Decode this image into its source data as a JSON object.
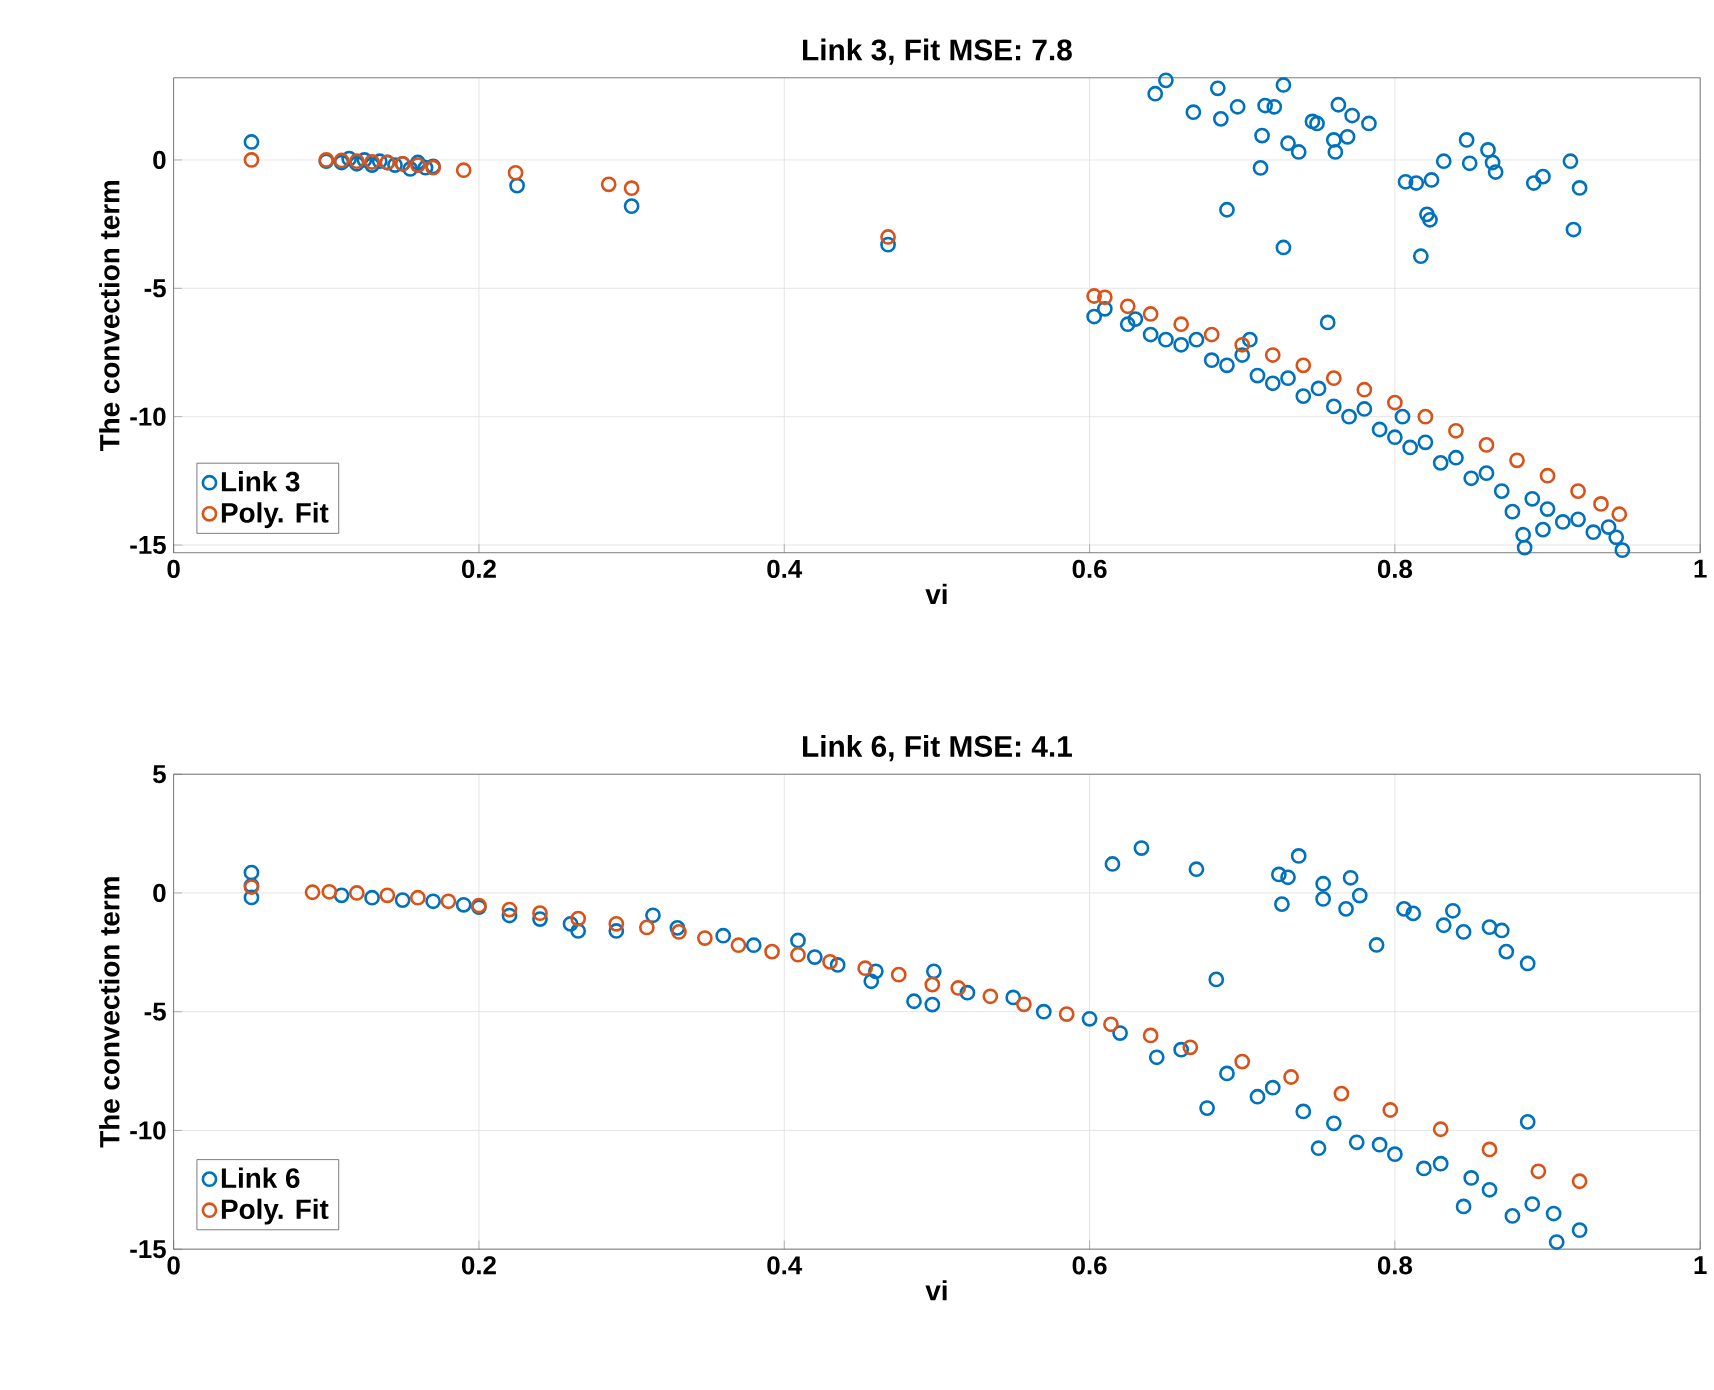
{
  "chart_data": [
    {
      "type": "scatter",
      "title": "Link 3, Fit MSE: 7.8",
      "xlabel": "vi",
      "ylabel": "The convection term",
      "xlim": [
        0,
        1
      ],
      "ylim": [
        -15.3,
        3.2
      ],
      "xticks": [
        0,
        0.2,
        0.4,
        0.6,
        0.8,
        1
      ],
      "yticks": [
        -15,
        -10,
        -5,
        0
      ],
      "grid": true,
      "legend": "bottom left",
      "marker": "circle",
      "series": [
        {
          "name": "Link 3",
          "color": "#0072bd",
          "x": [
            0.051,
            0.1,
            0.11,
            0.115,
            0.12,
            0.125,
            0.13,
            0.135,
            0.14,
            0.145,
            0.15,
            0.155,
            0.16,
            0.165,
            0.17,
            0.225,
            0.3,
            0.468,
            0.65,
            0.643,
            0.684,
            0.668,
            0.697,
            0.686,
            0.715,
            0.721,
            0.727,
            0.713,
            0.712,
            0.73,
            0.737,
            0.746,
            0.749,
            0.763,
            0.772,
            0.783,
            0.76,
            0.761,
            0.769,
            0.69,
            0.727,
            0.756,
            0.807,
            0.814,
            0.824,
            0.832,
            0.847,
            0.849,
            0.861,
            0.864,
            0.866,
            0.891,
            0.897,
            0.915,
            0.921,
            0.917,
            0.821,
            0.823,
            0.817,
            0.603,
            0.61,
            0.625,
            0.63,
            0.64,
            0.65,
            0.66,
            0.67,
            0.68,
            0.69,
            0.7,
            0.705,
            0.71,
            0.72,
            0.73,
            0.74,
            0.75,
            0.76,
            0.77,
            0.78,
            0.79,
            0.8,
            0.805,
            0.81,
            0.82,
            0.83,
            0.84,
            0.85,
            0.86,
            0.87,
            0.877,
            0.884,
            0.885,
            0.89,
            0.897,
            0.9,
            0.91,
            0.92,
            0.93,
            0.94,
            0.945,
            0.949
          ],
          "values": [
            0.7,
            -0.05,
            -0.1,
            0.05,
            -0.15,
            0.0,
            -0.2,
            -0.05,
            -0.1,
            -0.2,
            -0.15,
            -0.35,
            -0.1,
            -0.3,
            -0.25,
            -1.0,
            -1.8,
            -3.3,
            3.1,
            2.58,
            2.79,
            1.86,
            2.07,
            1.6,
            2.12,
            2.07,
            2.92,
            0.95,
            -0.31,
            0.65,
            0.31,
            1.5,
            1.42,
            2.15,
            1.73,
            1.42,
            0.78,
            0.31,
            0.9,
            -1.94,
            -3.41,
            -6.33,
            -0.85,
            -0.9,
            -0.78,
            -0.05,
            0.78,
            -0.13,
            0.39,
            -0.1,
            -0.47,
            -0.9,
            -0.65,
            -0.05,
            -1.09,
            -2.71,
            -2.12,
            -2.33,
            -3.75,
            -6.1,
            -5.8,
            -6.4,
            -6.2,
            -6.8,
            -7.0,
            -7.2,
            -7.0,
            -7.8,
            -8.0,
            -7.6,
            -7.0,
            -8.4,
            -8.7,
            -8.5,
            -9.2,
            -8.9,
            -9.6,
            -10.0,
            -9.7,
            -10.5,
            -10.8,
            -10.0,
            -11.2,
            -11.0,
            -11.8,
            -11.6,
            -12.4,
            -12.2,
            -12.9,
            -13.7,
            -14.6,
            -15.1,
            -13.2,
            -14.4,
            -13.6,
            -14.1,
            -14.0,
            -14.5,
            -14.3,
            -14.7,
            -15.2
          ]
        },
        {
          "name": "Poly. Fit",
          "color": "#d95319",
          "x": [
            0.051,
            0.1,
            0.11,
            0.12,
            0.13,
            0.14,
            0.15,
            0.16,
            0.17,
            0.19,
            0.224,
            0.285,
            0.3,
            0.468,
            0.603,
            0.61,
            0.625,
            0.64,
            0.66,
            0.68,
            0.7,
            0.72,
            0.74,
            0.76,
            0.78,
            0.8,
            0.82,
            0.84,
            0.86,
            0.88,
            0.9,
            0.92,
            0.935,
            0.947
          ],
          "values": [
            0.0,
            0.0,
            -0.02,
            -0.05,
            -0.08,
            -0.1,
            -0.15,
            -0.2,
            -0.3,
            -0.4,
            -0.5,
            -0.95,
            -1.1,
            -3.0,
            -5.3,
            -5.35,
            -5.7,
            -6.0,
            -6.4,
            -6.8,
            -7.2,
            -7.6,
            -8.0,
            -8.5,
            -8.95,
            -9.45,
            -10.0,
            -10.55,
            -11.1,
            -11.7,
            -12.3,
            -12.9,
            -13.4,
            -13.8
          ]
        }
      ]
    },
    {
      "type": "scatter",
      "title": "Link 6, Fit MSE: 4.1",
      "xlabel": "vi",
      "ylabel": "The convection term",
      "xlim": [
        0,
        1
      ],
      "ylim": [
        -15,
        5
      ],
      "xticks": [
        0,
        0.2,
        0.4,
        0.6,
        0.8,
        1
      ],
      "yticks": [
        -15,
        -10,
        -5,
        0,
        5
      ],
      "grid": true,
      "legend": "bottom left",
      "marker": "circle",
      "series": [
        {
          "name": "Link 6",
          "color": "#0072bd",
          "x": [
            0.051,
            0.051,
            0.051,
            0.11,
            0.13,
            0.15,
            0.17,
            0.19,
            0.2,
            0.22,
            0.24,
            0.26,
            0.265,
            0.29,
            0.314,
            0.33,
            0.36,
            0.38,
            0.409,
            0.42,
            0.435,
            0.457,
            0.46,
            0.485,
            0.497,
            0.498,
            0.52,
            0.55,
            0.57,
            0.6,
            0.62,
            0.644,
            0.66,
            0.677,
            0.69,
            0.71,
            0.72,
            0.74,
            0.75,
            0.76,
            0.775,
            0.79,
            0.8,
            0.819,
            0.83,
            0.845,
            0.85,
            0.862,
            0.877,
            0.887,
            0.89,
            0.904,
            0.906,
            0.921,
            0.615,
            0.634,
            0.67,
            0.724,
            0.73,
            0.737,
            0.726,
            0.753,
            0.753,
            0.771,
            0.777,
            0.768,
            0.788,
            0.683,
            0.806,
            0.812,
            0.838,
            0.832,
            0.845,
            0.862,
            0.87,
            0.873,
            0.887
          ],
          "values": [
            0.86,
            0.31,
            -0.19,
            -0.1,
            -0.2,
            -0.3,
            -0.35,
            -0.5,
            -0.6,
            -0.95,
            -1.1,
            -1.3,
            -1.6,
            -1.6,
            -0.94,
            -1.47,
            -1.8,
            -2.2,
            -2.0,
            -2.7,
            -3.03,
            -3.72,
            -3.3,
            -4.56,
            -4.7,
            -3.3,
            -4.2,
            -4.4,
            -5.0,
            -5.3,
            -5.9,
            -6.92,
            -6.6,
            -9.06,
            -7.6,
            -8.58,
            -8.2,
            -9.2,
            -10.75,
            -9.7,
            -10.5,
            -10.6,
            -11.0,
            -11.6,
            -11.4,
            -13.2,
            -12.0,
            -12.5,
            -13.6,
            -9.64,
            -13.1,
            -13.5,
            -14.7,
            -14.2,
            1.22,
            1.89,
            1.0,
            0.78,
            0.66,
            1.56,
            -0.47,
            0.39,
            -0.25,
            0.64,
            -0.11,
            -0.67,
            -2.19,
            -3.64,
            -0.67,
            -0.86,
            -0.75,
            -1.36,
            -1.64,
            -1.44,
            -1.58,
            -2.47,
            -2.97
          ]
        },
        {
          "name": "Poly. Fit",
          "color": "#d95319",
          "x": [
            0.051,
            0.091,
            0.102,
            0.12,
            0.14,
            0.16,
            0.18,
            0.2,
            0.22,
            0.24,
            0.265,
            0.29,
            0.31,
            0.331,
            0.348,
            0.37,
            0.392,
            0.409,
            0.43,
            0.453,
            0.475,
            0.497,
            0.514,
            0.535,
            0.557,
            0.585,
            0.614,
            0.64,
            0.666,
            0.7,
            0.732,
            0.765,
            0.797,
            0.83,
            0.862,
            0.894,
            0.921
          ],
          "values": [
            0.25,
            0.03,
            0.05,
            0.0,
            -0.1,
            -0.2,
            -0.35,
            -0.53,
            -0.7,
            -0.85,
            -1.08,
            -1.3,
            -1.45,
            -1.64,
            -1.9,
            -2.2,
            -2.47,
            -2.6,
            -2.9,
            -3.17,
            -3.44,
            -3.86,
            -4.0,
            -4.35,
            -4.69,
            -5.1,
            -5.53,
            -6.0,
            -6.5,
            -7.1,
            -7.75,
            -8.45,
            -9.14,
            -9.95,
            -10.8,
            -11.72,
            -12.14
          ]
        }
      ]
    }
  ]
}
